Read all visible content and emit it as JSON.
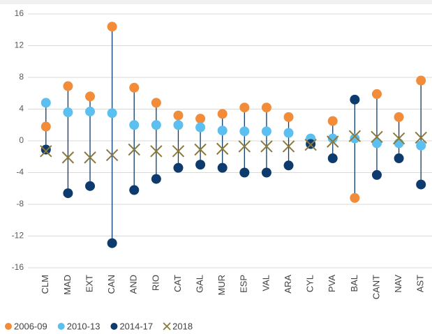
{
  "chart_data": {
    "type": "dot-range",
    "categories": [
      "CLM",
      "MAD",
      "EXT",
      "CAN",
      "AND",
      "RIO",
      "CAT",
      "GAL",
      "MUR",
      "ESP",
      "VAL",
      "ARA",
      "CYL",
      "PVA",
      "BAL",
      "CANT",
      "NAV",
      "AST"
    ],
    "series": [
      {
        "name": "2006-09",
        "color": "#f28c38",
        "marker": "circle",
        "values": [
          1.8,
          6.9,
          5.6,
          14.4,
          6.7,
          4.8,
          3.2,
          2.8,
          3.4,
          4.2,
          4.2,
          3.0,
          0.2,
          2.5,
          -7.2,
          5.9,
          3.0,
          7.6
        ]
      },
      {
        "name": "2010-13",
        "color": "#5bc0f0",
        "marker": "circle",
        "values": [
          4.8,
          3.6,
          3.7,
          3.5,
          2.0,
          2.0,
          2.0,
          1.7,
          1.3,
          1.2,
          1.2,
          1.0,
          0.3,
          0.3,
          0.3,
          -0.3,
          -0.3,
          -0.6
        ]
      },
      {
        "name": "2014-17",
        "color": "#0d3b6e",
        "marker": "circle",
        "values": [
          -1.1,
          -6.6,
          -5.7,
          -12.9,
          -6.2,
          -4.8,
          -3.4,
          -3.0,
          -3.4,
          -4.0,
          -4.0,
          -3.1,
          -0.4,
          -2.2,
          5.2,
          -4.3,
          -2.2,
          -5.5
        ]
      },
      {
        "name": "2018",
        "color": "#8a7a3c",
        "marker": "x",
        "values": [
          -1.3,
          -2.1,
          -2.1,
          -1.8,
          -1.1,
          -1.3,
          -1.3,
          -1.1,
          -1.0,
          -0.7,
          -0.7,
          -0.7,
          -0.5,
          -0.1,
          0.6,
          0.5,
          0.3,
          0.4
        ]
      }
    ],
    "range_color": "#0d3b6e",
    "ylim": [
      -16,
      16
    ],
    "yticks": [
      -16,
      -12,
      -8,
      -4,
      0,
      4,
      8,
      12,
      16
    ],
    "grid": true,
    "legend": "bottom"
  }
}
